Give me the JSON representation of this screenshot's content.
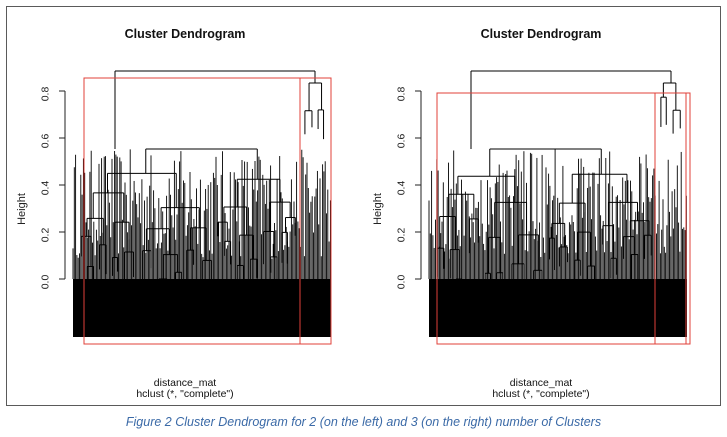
{
  "panels": [
    {
      "title": "Cluster Dendrogram",
      "ylabel": "Height",
      "yticks": [
        "0.0",
        "0.2",
        "0.4",
        "0.6",
        "0.8"
      ],
      "xlabel": "distance_mat",
      "method": "hclust (*, \"complete\")",
      "clusters": 2
    },
    {
      "title": "Cluster Dendrogram",
      "ylabel": "Height",
      "yticks": [
        "0.0",
        "0.2",
        "0.4",
        "0.6",
        "0.8"
      ],
      "xlabel": "distance_mat",
      "method": "hclust (*, \"complete\")",
      "clusters": 3
    }
  ],
  "caption": "Figure 2 Cluster Dendrogram for 2 (on the left) and 3 (on the right) number of Clusters",
  "colors": {
    "box": "#e0403a",
    "tree": "#000000",
    "caption": "#3b6aa7"
  }
}
